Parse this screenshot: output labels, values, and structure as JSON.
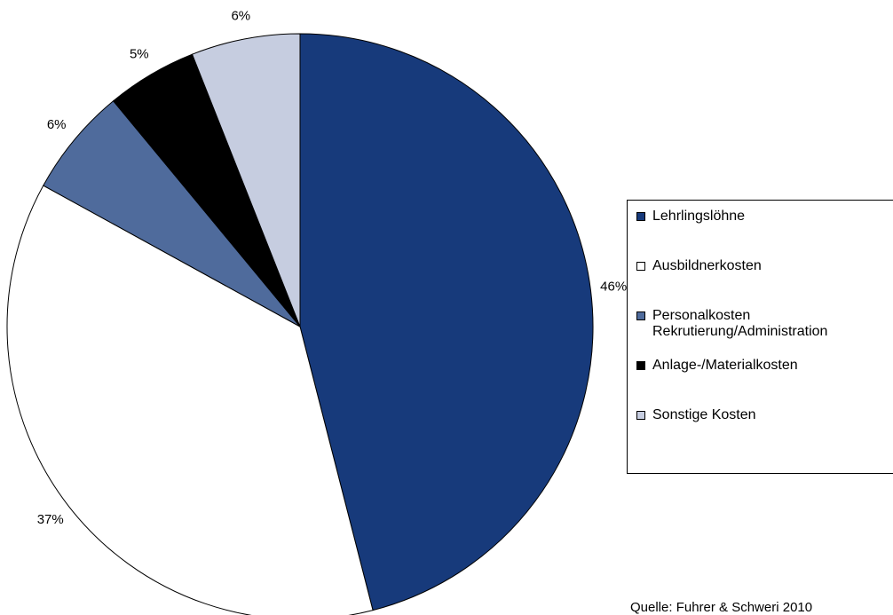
{
  "chart_data": {
    "type": "pie",
    "categories": [
      "Lehrlingslöhne",
      "Ausbildnerkosten",
      "Personalkosten Rekrutierung/Administration",
      "Anlage-/Materialkosten",
      "Sonstige Kosten"
    ],
    "values": [
      46,
      37,
      6,
      5,
      6
    ],
    "value_labels": [
      "46%",
      "37%",
      "6%",
      "5%",
      "6%"
    ],
    "colors": [
      "#173a7b",
      "#ffffff",
      "#4f6b9c",
      "#000000",
      "#c6cde0"
    ],
    "legend": "right",
    "source": "Quelle: Fuhrer & Schweri 2010"
  }
}
